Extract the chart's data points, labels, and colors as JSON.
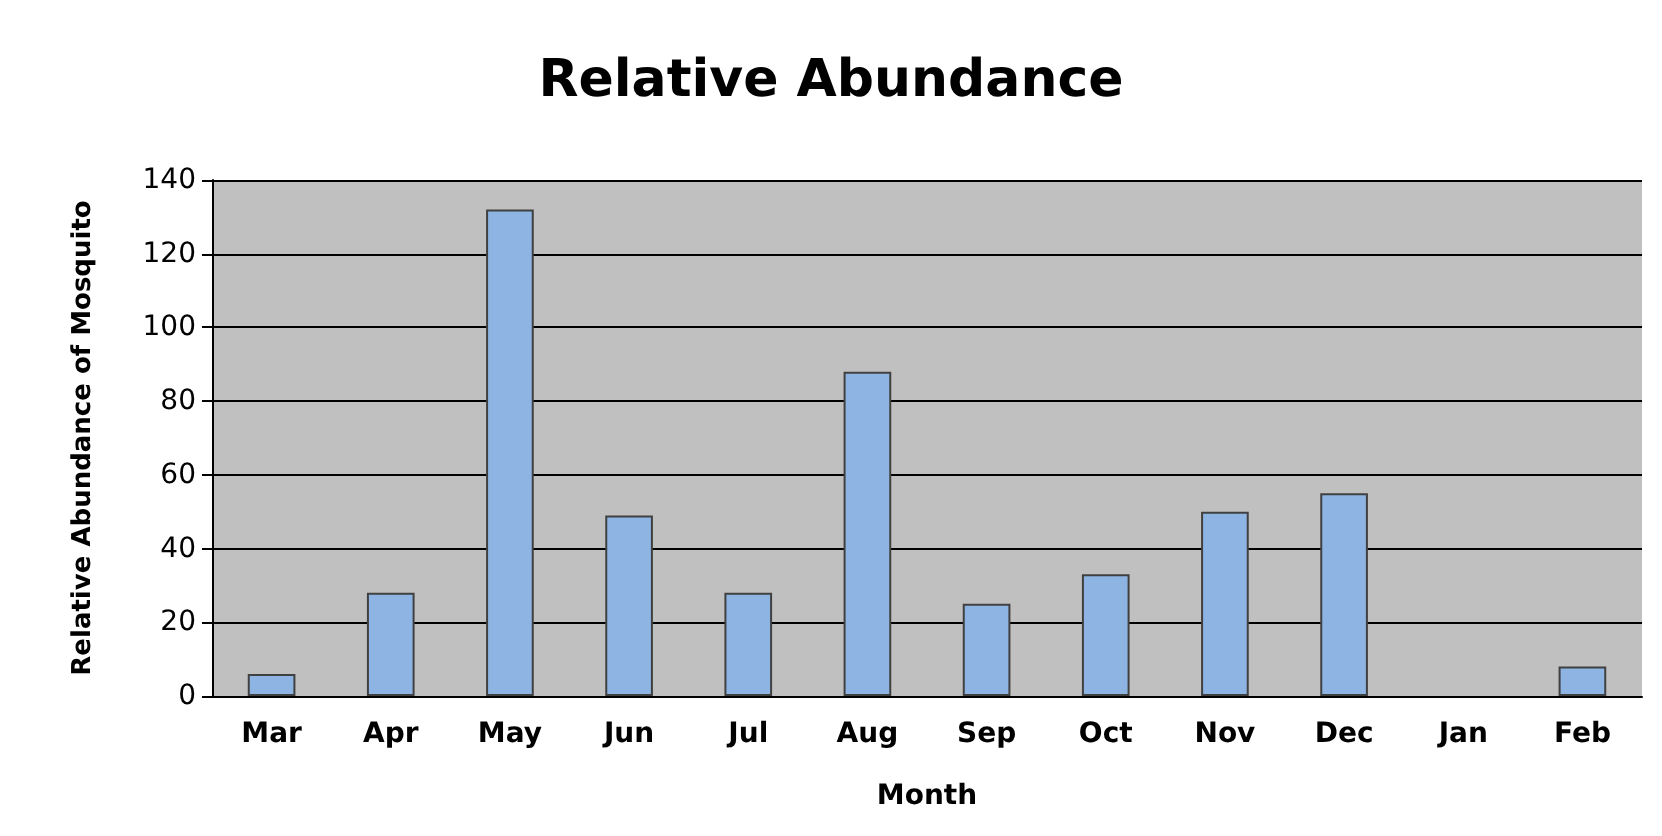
{
  "chart_data": {
    "type": "bar",
    "title": "Relative Abundance",
    "xlabel": "Month",
    "ylabel": "Relative Abundance of Mosquito",
    "categories": [
      "Mar",
      "Apr",
      "May",
      "Jun",
      "Jul",
      "Aug",
      "Sep",
      "Oct",
      "Nov",
      "Dec",
      "Jan",
      "Feb"
    ],
    "values": [
      6,
      28,
      132,
      49,
      28,
      88,
      25,
      33,
      50,
      55,
      0,
      8
    ],
    "color": "#8db4e2",
    "ylim": [
      0,
      140
    ],
    "yticks": [
      0,
      20,
      40,
      60,
      80,
      100,
      120,
      140
    ],
    "grid": "y"
  }
}
